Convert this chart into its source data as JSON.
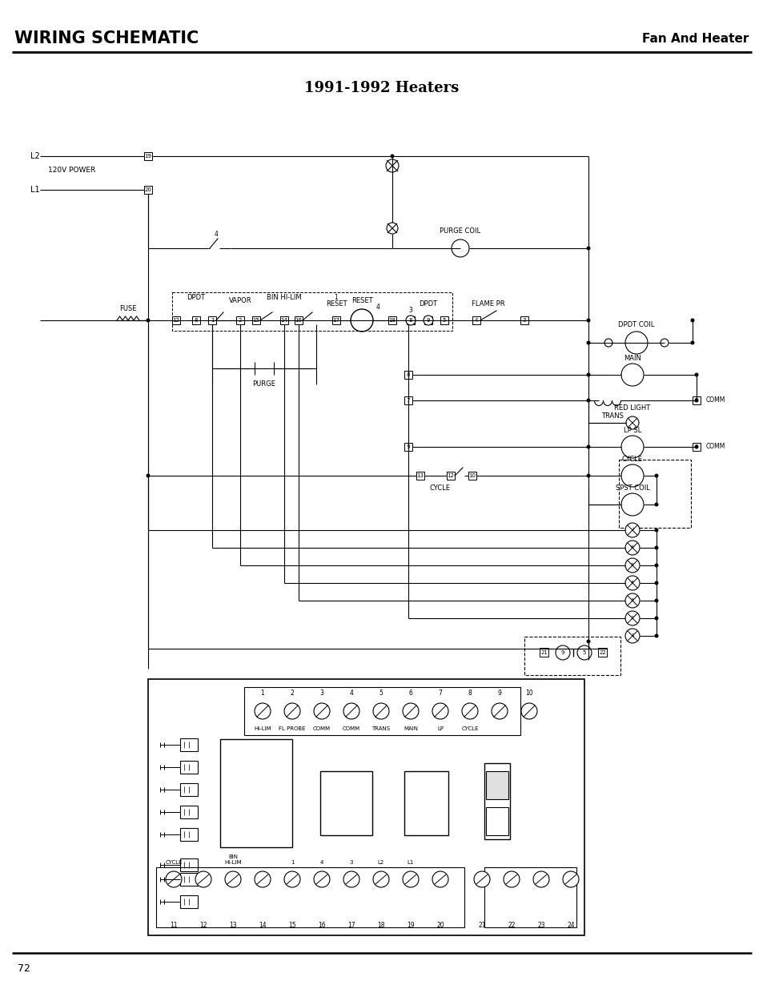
{
  "title": "WIRING SCHEMATIC",
  "subtitle": "Fan And Heater",
  "diagram_title": "1991-1992 Heaters",
  "page_number": "72",
  "bg_color": "#ffffff"
}
